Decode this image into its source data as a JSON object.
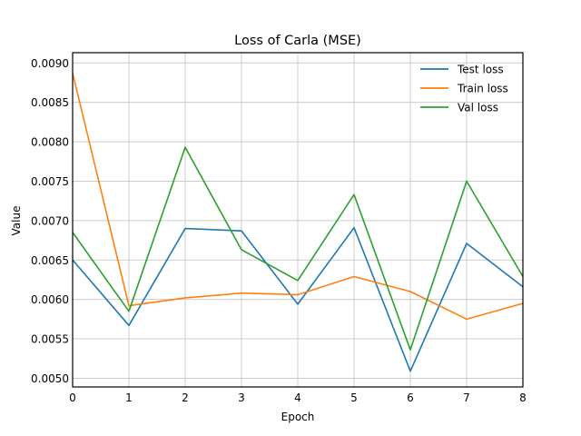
{
  "chart_data": {
    "type": "line",
    "title": "Loss of Carla (MSE)",
    "xlabel": "Epoch",
    "ylabel": "Value",
    "x": [
      0,
      1,
      2,
      3,
      4,
      5,
      6,
      7,
      8
    ],
    "xlim": [
      0,
      8
    ],
    "ylim": [
      0.00489,
      0.00913
    ],
    "xticks": [
      "0",
      "1",
      "2",
      "3",
      "4",
      "5",
      "6",
      "7",
      "8"
    ],
    "yticks": [
      0.005,
      0.0055,
      0.006,
      0.0065,
      0.007,
      0.0075,
      0.008,
      0.0085,
      0.009
    ],
    "ytick_labels": [
      "0.0050",
      "0.0055",
      "0.0060",
      "0.0065",
      "0.0070",
      "0.0075",
      "0.0080",
      "0.0085",
      "0.0090"
    ],
    "grid": true,
    "legend_position": "top-right",
    "series": [
      {
        "name": "Test loss",
        "color": "#1f77b4",
        "values": [
          0.0065,
          0.00567,
          0.0069,
          0.00687,
          0.00594,
          0.00691,
          0.00509,
          0.00671,
          0.00616
        ]
      },
      {
        "name": "Train loss",
        "color": "#ff7f0e",
        "values": [
          0.00887,
          0.00592,
          0.00602,
          0.00608,
          0.00606,
          0.00629,
          0.0061,
          0.00575,
          0.00595
        ]
      },
      {
        "name": "Val loss",
        "color": "#2ca02c",
        "values": [
          0.00685,
          0.00585,
          0.00793,
          0.00663,
          0.00624,
          0.00733,
          0.00536,
          0.0075,
          0.00629
        ]
      }
    ]
  }
}
